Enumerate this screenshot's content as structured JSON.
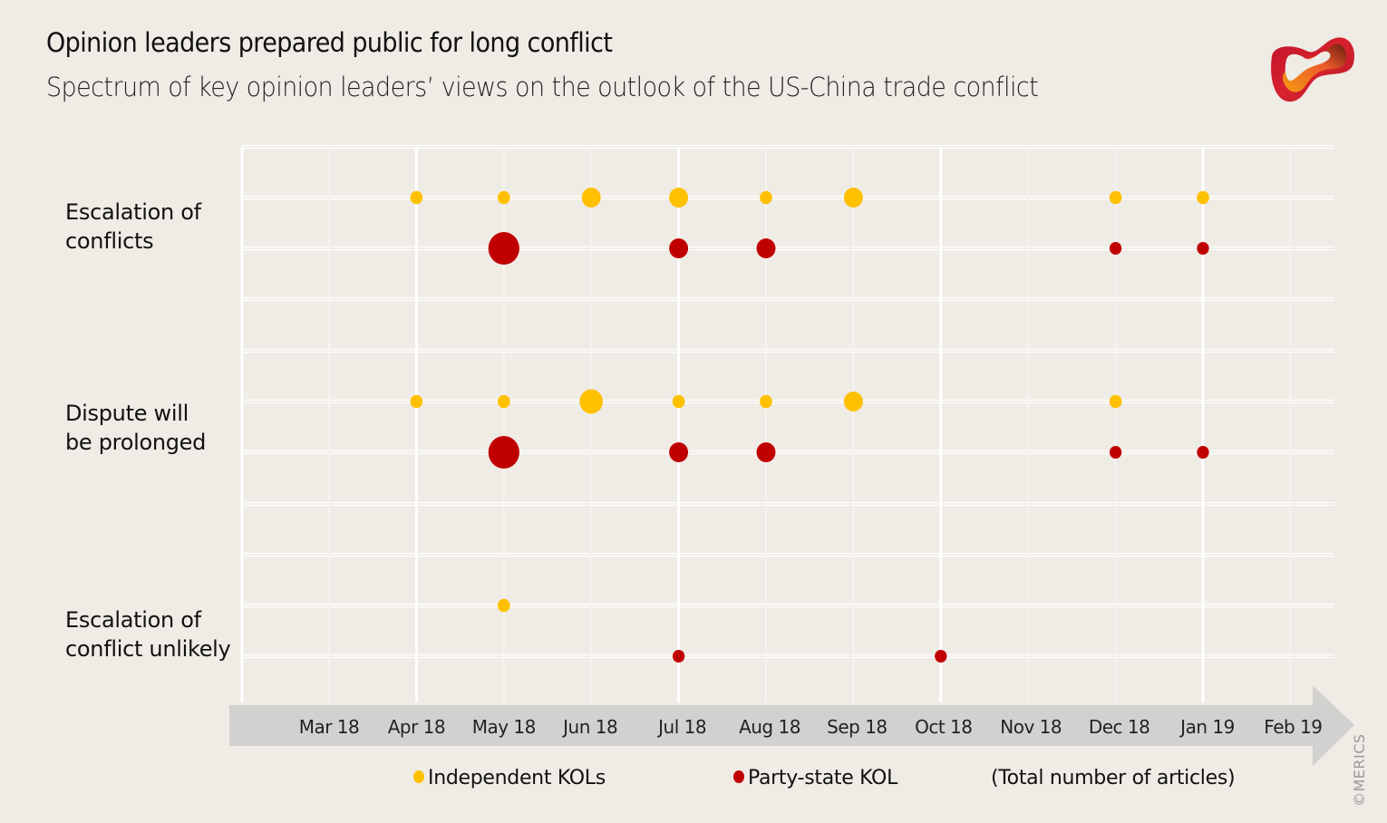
{
  "header": {
    "title": "Opinion leaders prepared public for long conflict",
    "subtitle": "Spectrum of key opinion leaders’ views on the outlook of the US-China trade conflict"
  },
  "logo": {
    "name": "merics-logo",
    "colors": [
      "#c0152a",
      "#e94b2b",
      "#f28c12",
      "#6b1d0e"
    ]
  },
  "copyright": "©MERICS",
  "chart_data": {
    "type": "scatter",
    "subtype": "bubble",
    "title": "Opinion leaders prepared public for long conflict",
    "subtitle": "Spectrum of key opinion leaders’ views on the outlook of the US-China trade conflict",
    "xlabel": "",
    "ylabel": "",
    "x_categories": [
      "Mar 18",
      "Apr 18",
      "May 18",
      "Jun 18",
      "Jul 18",
      "Aug 18",
      "Sep 18",
      "Oct 18",
      "Nov 18",
      "Dec 18",
      "Jan 19",
      "Feb 19"
    ],
    "y_categories": [
      "Escalation of conflicts",
      "Dispute will be prolonged",
      "Escalation of conflict unlikely"
    ],
    "y_category_lines": [
      [
        "Escalation of",
        "conflicts"
      ],
      [
        "Dispute will",
        "be prolonged"
      ],
      [
        "Escalation of",
        "conflict unlikely"
      ]
    ],
    "size_note": "(Total number of  articles)",
    "grid": true,
    "legend_position": "bottom",
    "series": [
      {
        "name": "Independent KOLs",
        "color": "#ffc000",
        "points": [
          {
            "category": "Escalation of conflicts",
            "x": "Apr 18",
            "size": 1
          },
          {
            "category": "Escalation of conflicts",
            "x": "May 18",
            "size": 1
          },
          {
            "category": "Escalation of conflicts",
            "x": "Jun 18",
            "size": 2
          },
          {
            "category": "Escalation of conflicts",
            "x": "Jul 18",
            "size": 2
          },
          {
            "category": "Escalation of conflicts",
            "x": "Aug 18",
            "size": 1
          },
          {
            "category": "Escalation of conflicts",
            "x": "Sep 18",
            "size": 2
          },
          {
            "category": "Escalation of conflicts",
            "x": "Dec 18",
            "size": 1
          },
          {
            "category": "Escalation of conflicts",
            "x": "Jan 19",
            "size": 1
          },
          {
            "category": "Dispute will be prolonged",
            "x": "Apr 18",
            "size": 1
          },
          {
            "category": "Dispute will be prolonged",
            "x": "May 18",
            "size": 1
          },
          {
            "category": "Dispute will be prolonged",
            "x": "Jun 18",
            "size": 3
          },
          {
            "category": "Dispute will be prolonged",
            "x": "Jul 18",
            "size": 1
          },
          {
            "category": "Dispute will be prolonged",
            "x": "Aug 18",
            "size": 1
          },
          {
            "category": "Dispute will be prolonged",
            "x": "Sep 18",
            "size": 2
          },
          {
            "category": "Dispute will be prolonged",
            "x": "Dec 18",
            "size": 1
          },
          {
            "category": "Escalation of conflict unlikely",
            "x": "May 18",
            "size": 1
          }
        ]
      },
      {
        "name": "Party-state KOL",
        "color": "#c00000",
        "points": [
          {
            "category": "Escalation of conflicts",
            "x": "May 18",
            "size": 5
          },
          {
            "category": "Escalation of conflicts",
            "x": "Jul 18",
            "size": 2
          },
          {
            "category": "Escalation of conflicts",
            "x": "Aug 18",
            "size": 2
          },
          {
            "category": "Escalation of conflicts",
            "x": "Dec 18",
            "size": 1
          },
          {
            "category": "Escalation of conflicts",
            "x": "Jan 19",
            "size": 1
          },
          {
            "category": "Dispute will be prolonged",
            "x": "May 18",
            "size": 5
          },
          {
            "category": "Dispute will be prolonged",
            "x": "Jul 18",
            "size": 2
          },
          {
            "category": "Dispute will be prolonged",
            "x": "Aug 18",
            "size": 2
          },
          {
            "category": "Dispute will be prolonged",
            "x": "Dec 18",
            "size": 1
          },
          {
            "category": "Dispute will be prolonged",
            "x": "Jan 19",
            "size": 1
          },
          {
            "category": "Escalation of conflict unlikely",
            "x": "Jul 18",
            "size": 1
          },
          {
            "category": "Escalation of conflict unlikely",
            "x": "Oct 18",
            "size": 1
          }
        ]
      }
    ]
  },
  "legend": {
    "independent": "Independent KOLs",
    "party_state": "Party-state KOL",
    "size_note": "(Total number of  articles)"
  }
}
